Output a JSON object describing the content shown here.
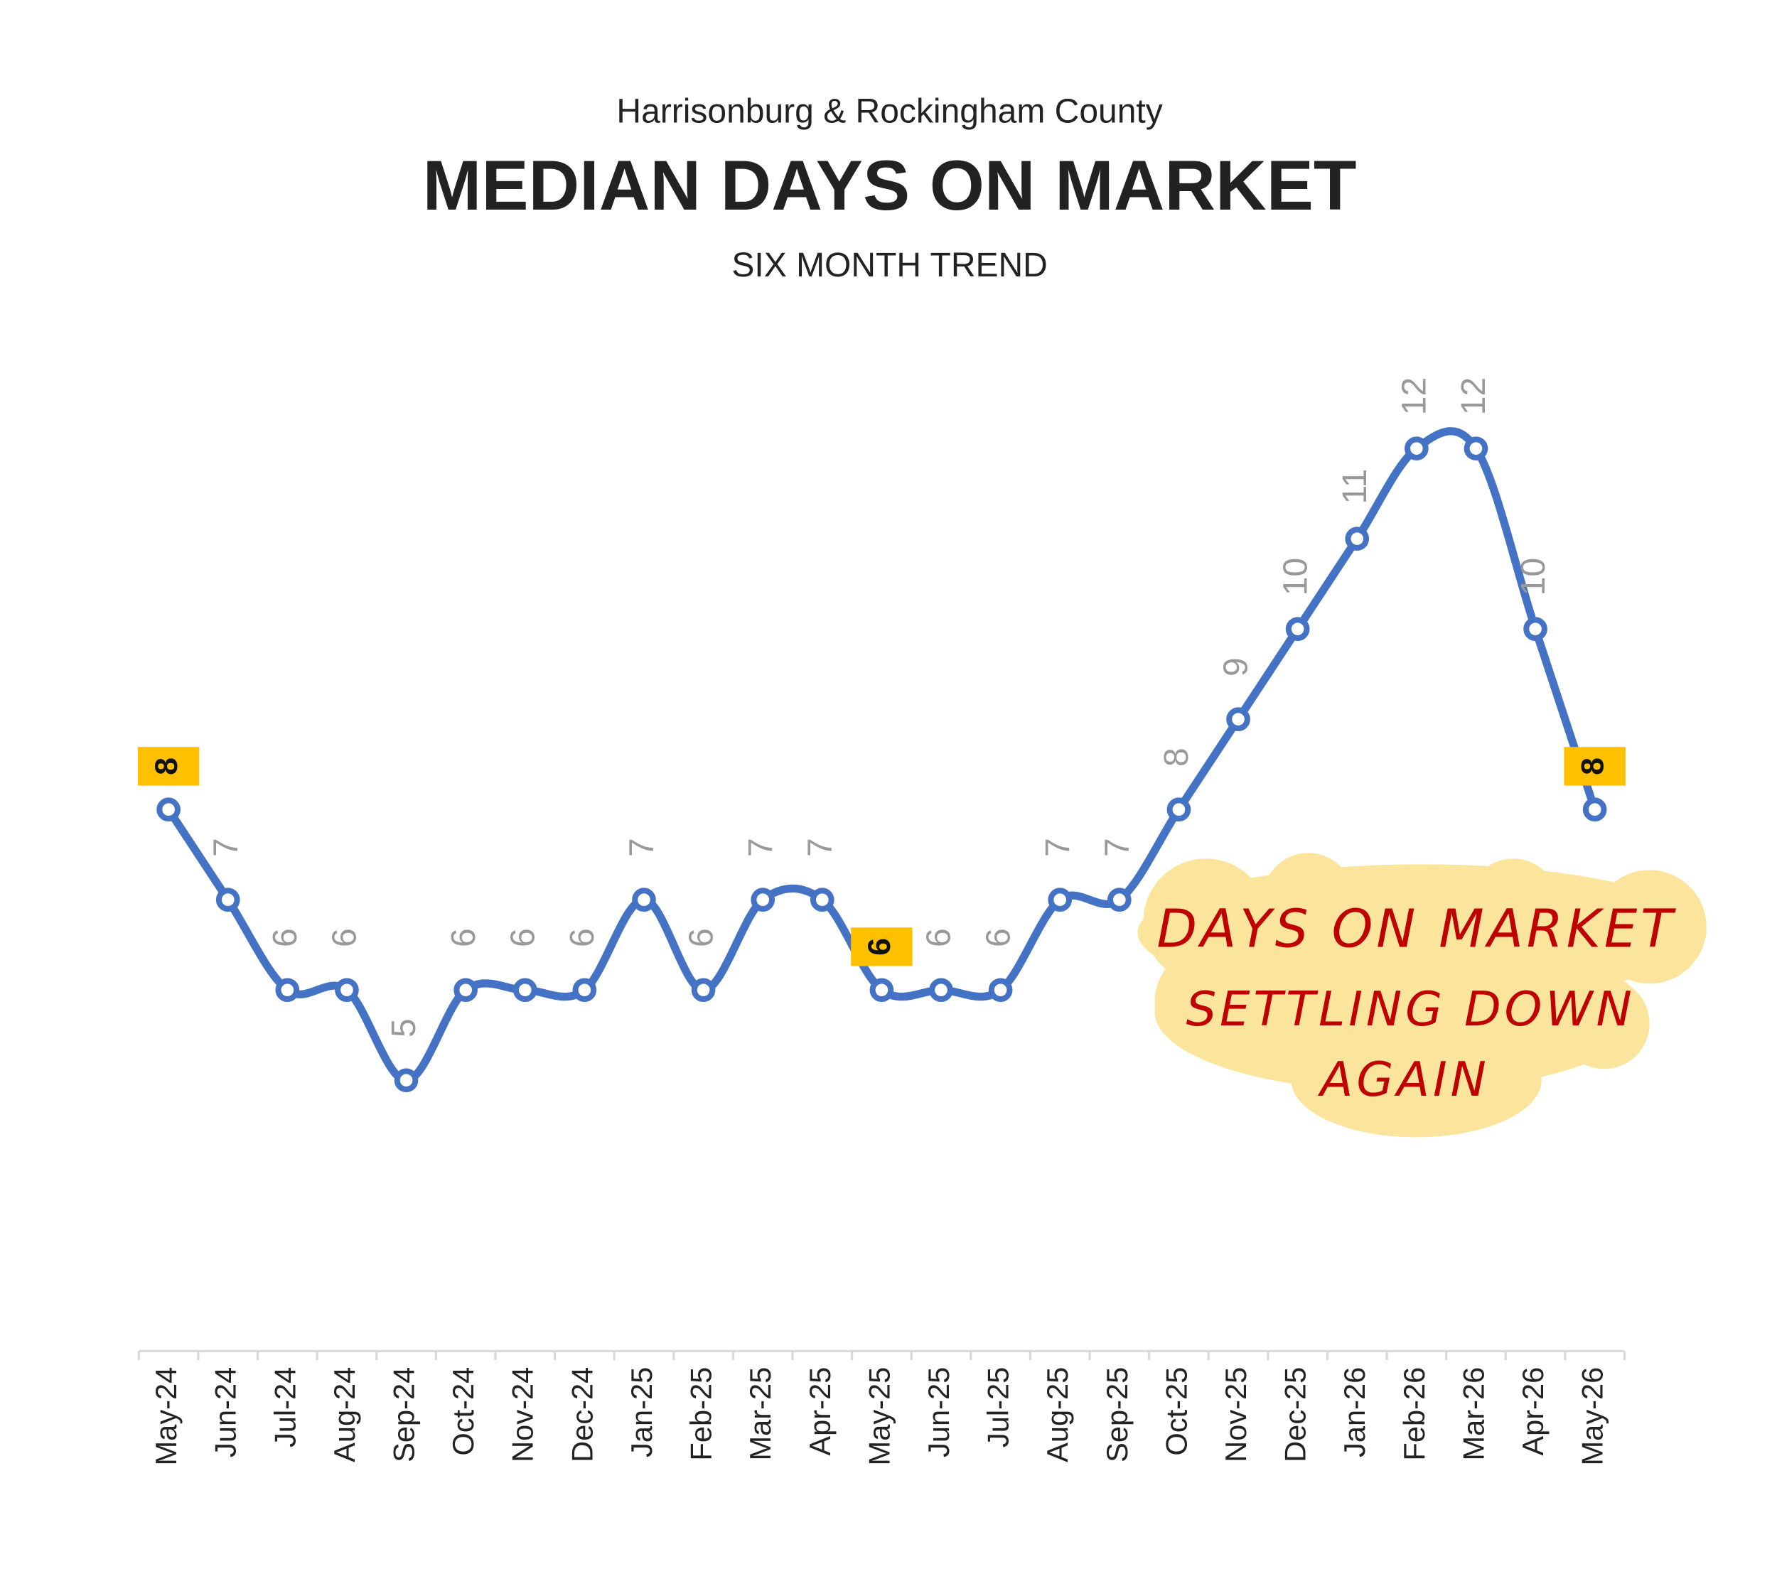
{
  "chart_data": {
    "type": "line",
    "supertitle": "Harrisonburg & Rockingham County",
    "title": "MEDIAN DAYS ON MARKET",
    "subtitle": "SIX MONTH TREND",
    "categories": [
      "May-24",
      "Jun-24",
      "Jul-24",
      "Aug-24",
      "Sep-24",
      "Oct-24",
      "Nov-24",
      "Dec-24",
      "Jan-25",
      "Feb-25",
      "Mar-25",
      "Apr-25",
      "May-25",
      "Jun-25",
      "Jul-25",
      "Aug-25",
      "Sep-25",
      "Oct-25",
      "Nov-25",
      "Dec-25",
      "Jan-26",
      "Feb-26",
      "Mar-26",
      "Apr-26",
      "May-26"
    ],
    "series": [
      {
        "name": "Median Days on Market",
        "color": "#4472c4",
        "values": [
          8,
          7,
          6,
          6,
          5,
          6,
          6,
          6,
          7,
          6,
          7,
          7,
          6,
          6,
          6,
          7,
          7,
          8,
          9,
          10,
          11,
          12,
          12,
          10,
          8
        ]
      }
    ],
    "highlight_indices": [
      0,
      12,
      24
    ],
    "highlight_color": "#ffc000",
    "ylim": [
      2,
      13
    ],
    "annotation": [
      "DAYS ON MARKET",
      "SETTLING DOWN",
      "AGAIN"
    ],
    "annotation_color": "#c00000"
  }
}
